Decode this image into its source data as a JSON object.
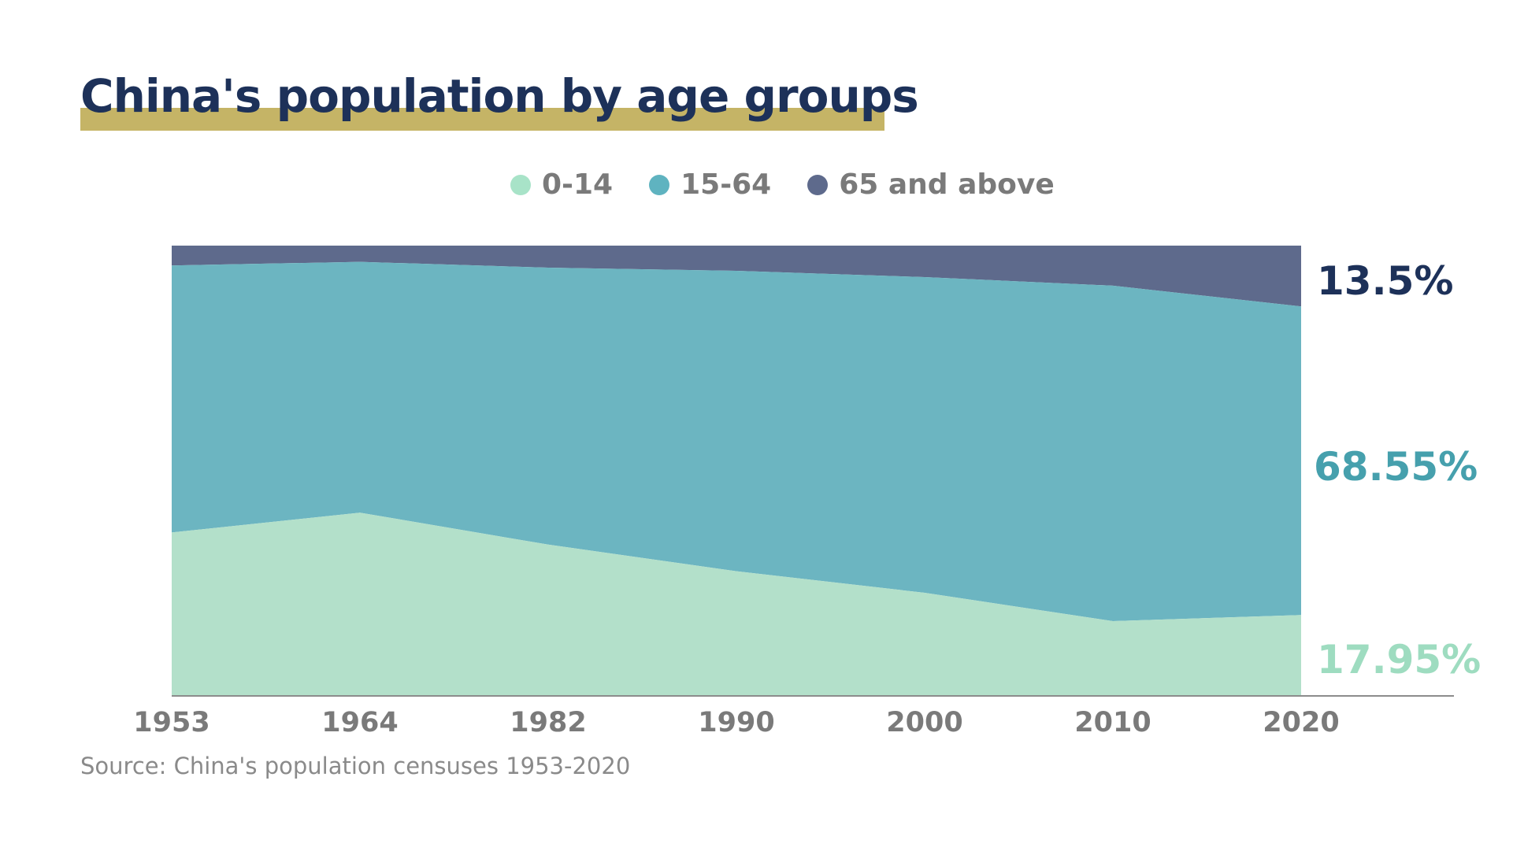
{
  "title": "China's population by age groups",
  "source": "Source: China's population censuses 1953-2020",
  "colors": {
    "title": "#1d3159",
    "title_underline": "#c5b466",
    "age_0_14": "#b3e0ca",
    "age_15_64": "#6cb5c1",
    "age_65_above": "#5e6a8c",
    "label_0_14": "#9edcc0",
    "label_15_64": "#46a0ad",
    "label_65_above": "#1d3159",
    "axis_text": "#7a7a7a"
  },
  "chart_data": {
    "type": "area",
    "stacked": true,
    "categories": [
      "1953",
      "1964",
      "1982",
      "1990",
      "2000",
      "2010",
      "2020"
    ],
    "series": [
      {
        "name": "0-14",
        "values": [
          36.3,
          40.7,
          33.6,
          27.7,
          22.9,
          16.6,
          17.95
        ]
      },
      {
        "name": "15-64",
        "values": [
          59.3,
          55.7,
          61.5,
          66.7,
          70.1,
          74.5,
          68.55
        ]
      },
      {
        "name": "65 and above",
        "values": [
          4.4,
          3.6,
          4.9,
          5.6,
          7.0,
          8.9,
          13.5
        ]
      }
    ],
    "end_labels": [
      "17.95%",
      "68.55%",
      "13.5%"
    ],
    "ylim": [
      0,
      100
    ],
    "grid": false,
    "legend_position": "top-center",
    "xlabel": "",
    "ylabel": ""
  }
}
